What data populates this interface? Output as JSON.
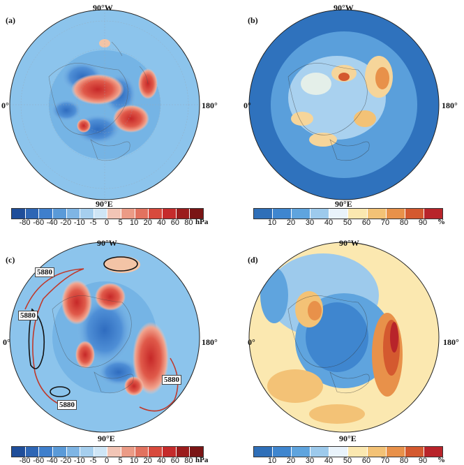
{
  "figure": {
    "panels": [
      {
        "id": "a",
        "label": "(a)",
        "top_label": "90°W",
        "left_label": "0°",
        "right_label": "180°",
        "bottom_label": "90°E",
        "colorbar": {
          "ticks": [
            "-80",
            "-60",
            "-40",
            "-20",
            "-10",
            "-5",
            "0",
            "5",
            "10",
            "20",
            "40",
            "60",
            "80"
          ],
          "unit": "hPa",
          "colors": [
            "#1f4e9a",
            "#2e66b5",
            "#3f7fcc",
            "#5a9ad8",
            "#7fb5e4",
            "#a6cfee",
            "#cfe6f6",
            "#f2c5b6",
            "#eb9b86",
            "#e2725f",
            "#d84a3d",
            "#c52b2b",
            "#9b1c1c",
            "#7a1515"
          ]
        }
      },
      {
        "id": "b",
        "label": "(b)",
        "top_label": "90°W",
        "left_label": "0°",
        "right_label": "180°",
        "bottom_label": "90°E",
        "colorbar": {
          "ticks": [
            "10",
            "20",
            "30",
            "40",
            "50",
            "60",
            "70",
            "80",
            "90"
          ],
          "unit": "%",
          "colors": [
            "#2f6fb8",
            "#3f86cf",
            "#5fa4de",
            "#9dcaec",
            "#e9f3fb",
            "#fbe8b0",
            "#f3c276",
            "#e8914a",
            "#d4592f",
            "#b8242a"
          ]
        }
      },
      {
        "id": "c",
        "label": "(c)",
        "top_label": "90°W",
        "left_label": "0°",
        "right_label": "180°",
        "bottom_label": "90°E",
        "contour_labels": [
          "5880",
          "5880",
          "5880",
          "5880"
        ],
        "colorbar": {
          "ticks": [
            "-80",
            "-60",
            "-40",
            "-20",
            "-10",
            "-5",
            "0",
            "5",
            "10",
            "20",
            "40",
            "60",
            "80"
          ],
          "unit": "hPa",
          "colors": [
            "#1f4e9a",
            "#2e66b5",
            "#3f7fcc",
            "#5a9ad8",
            "#7fb5e4",
            "#a6cfee",
            "#cfe6f6",
            "#f2c5b6",
            "#eb9b86",
            "#e2725f",
            "#d84a3d",
            "#c52b2b",
            "#9b1c1c",
            "#7a1515"
          ]
        }
      },
      {
        "id": "d",
        "label": "(d)",
        "top_label": "90°W",
        "left_label": "0°",
        "right_label": "180°",
        "bottom_label": "90°E",
        "colorbar": {
          "ticks": [
            "10",
            "20",
            "30",
            "40",
            "50",
            "60",
            "70",
            "80",
            "90"
          ],
          "unit": "%",
          "colors": [
            "#2f6fb8",
            "#3f86cf",
            "#5fa4de",
            "#9dcaec",
            "#e9f3fb",
            "#fbe8b0",
            "#f3c276",
            "#e8914a",
            "#d4592f",
            "#b8242a"
          ]
        }
      }
    ]
  }
}
